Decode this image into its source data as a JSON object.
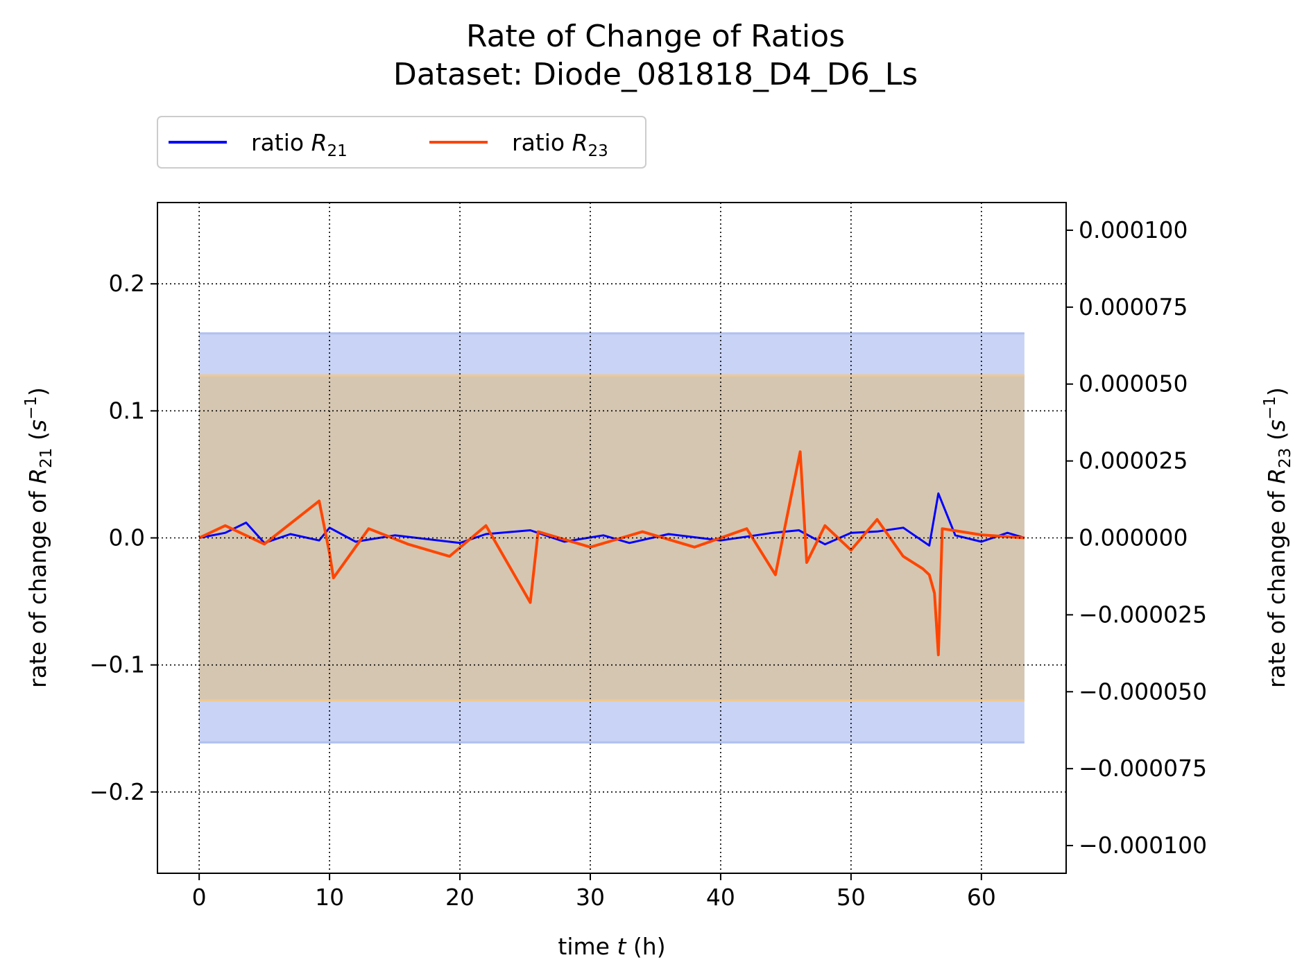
{
  "chart_data": {
    "type": "line",
    "title": "Rate of Change of Ratios",
    "subtitle": "Dataset: Diode_081818_D4_D6_Ls",
    "xlabel": "time t (h)",
    "ylabel_left": "rate of change of R21 (s⁻¹)",
    "ylabel_right": "rate of change of R23 (s⁻¹)",
    "xlim": [
      -3.2,
      66.5
    ],
    "ylim_left": [
      -0.264,
      0.264
    ],
    "ylim_right": [
      -0.000109,
      0.000109
    ],
    "x_ticks": [
      0,
      10,
      20,
      30,
      40,
      50,
      60
    ],
    "y_left_ticks": [
      -0.2,
      -0.1,
      0.0,
      0.1,
      0.2
    ],
    "y_left_tick_labels": [
      "−0.2",
      "−0.1",
      "0.0",
      "0.1",
      "0.2"
    ],
    "y_right_ticks": [
      -0.0001,
      -7.5e-05,
      -5e-05,
      -2.5e-05,
      0,
      2.5e-05,
      5e-05,
      7.5e-05,
      0.0001
    ],
    "y_right_tick_labels": [
      "−0.000100",
      "−0.000075",
      "−0.000050",
      "−0.000025",
      "0.000000",
      "0.000025",
      "0.000050",
      "0.000075",
      "0.000100"
    ],
    "grid": true,
    "legend_position": "top-left, above plot",
    "series": [
      {
        "name": "ratio R21",
        "axis": "left",
        "color": "#0000ff",
        "band_color": "#c5d1f4",
        "band_half_width": 0.161,
        "x": [
          0,
          2,
          3.6,
          5,
          7,
          9.2,
          10,
          12,
          15,
          20,
          22,
          25.4,
          28,
          31,
          33,
          36,
          40,
          44,
          46,
          48,
          50,
          52,
          54,
          56,
          56.7,
          58,
          60,
          62,
          63.3
        ],
        "values": [
          0.0,
          0.004,
          0.012,
          -0.004,
          0.003,
          -0.002,
          0.008,
          -0.003,
          0.002,
          -0.004,
          0.003,
          0.006,
          -0.003,
          0.002,
          -0.004,
          0.003,
          -0.002,
          0.004,
          0.006,
          -0.005,
          0.004,
          0.005,
          0.008,
          -0.006,
          0.035,
          0.002,
          -0.003,
          0.004,
          0.0
        ]
      },
      {
        "name": "ratio R23",
        "axis": "right",
        "color": "#ff4500",
        "band_color": "#d6c5ad",
        "band_half_width": 5.28e-05,
        "x": [
          0,
          2,
          5,
          9.2,
          10,
          10.3,
          13,
          16,
          19.2,
          22,
          25.4,
          26,
          30,
          34,
          38,
          42,
          44.2,
          45,
          46.1,
          46.6,
          48,
          50,
          52,
          54,
          55.5,
          56,
          56.4,
          56.7,
          57,
          60,
          63.3
        ],
        "values": [
          0.0,
          4e-06,
          -2e-06,
          1.2e-05,
          -5e-06,
          -1.3e-05,
          3e-06,
          -2e-06,
          -6e-06,
          4e-06,
          -2.1e-05,
          2e-06,
          -3e-06,
          2e-06,
          -3e-06,
          3e-06,
          -1.2e-05,
          5e-06,
          2.8e-05,
          -8e-06,
          4e-06,
          -4e-06,
          6e-06,
          -6e-06,
          -1e-05,
          -1.2e-05,
          -1.8e-05,
          -3.8e-05,
          3e-06,
          1e-06,
          0.0
        ]
      }
    ]
  }
}
